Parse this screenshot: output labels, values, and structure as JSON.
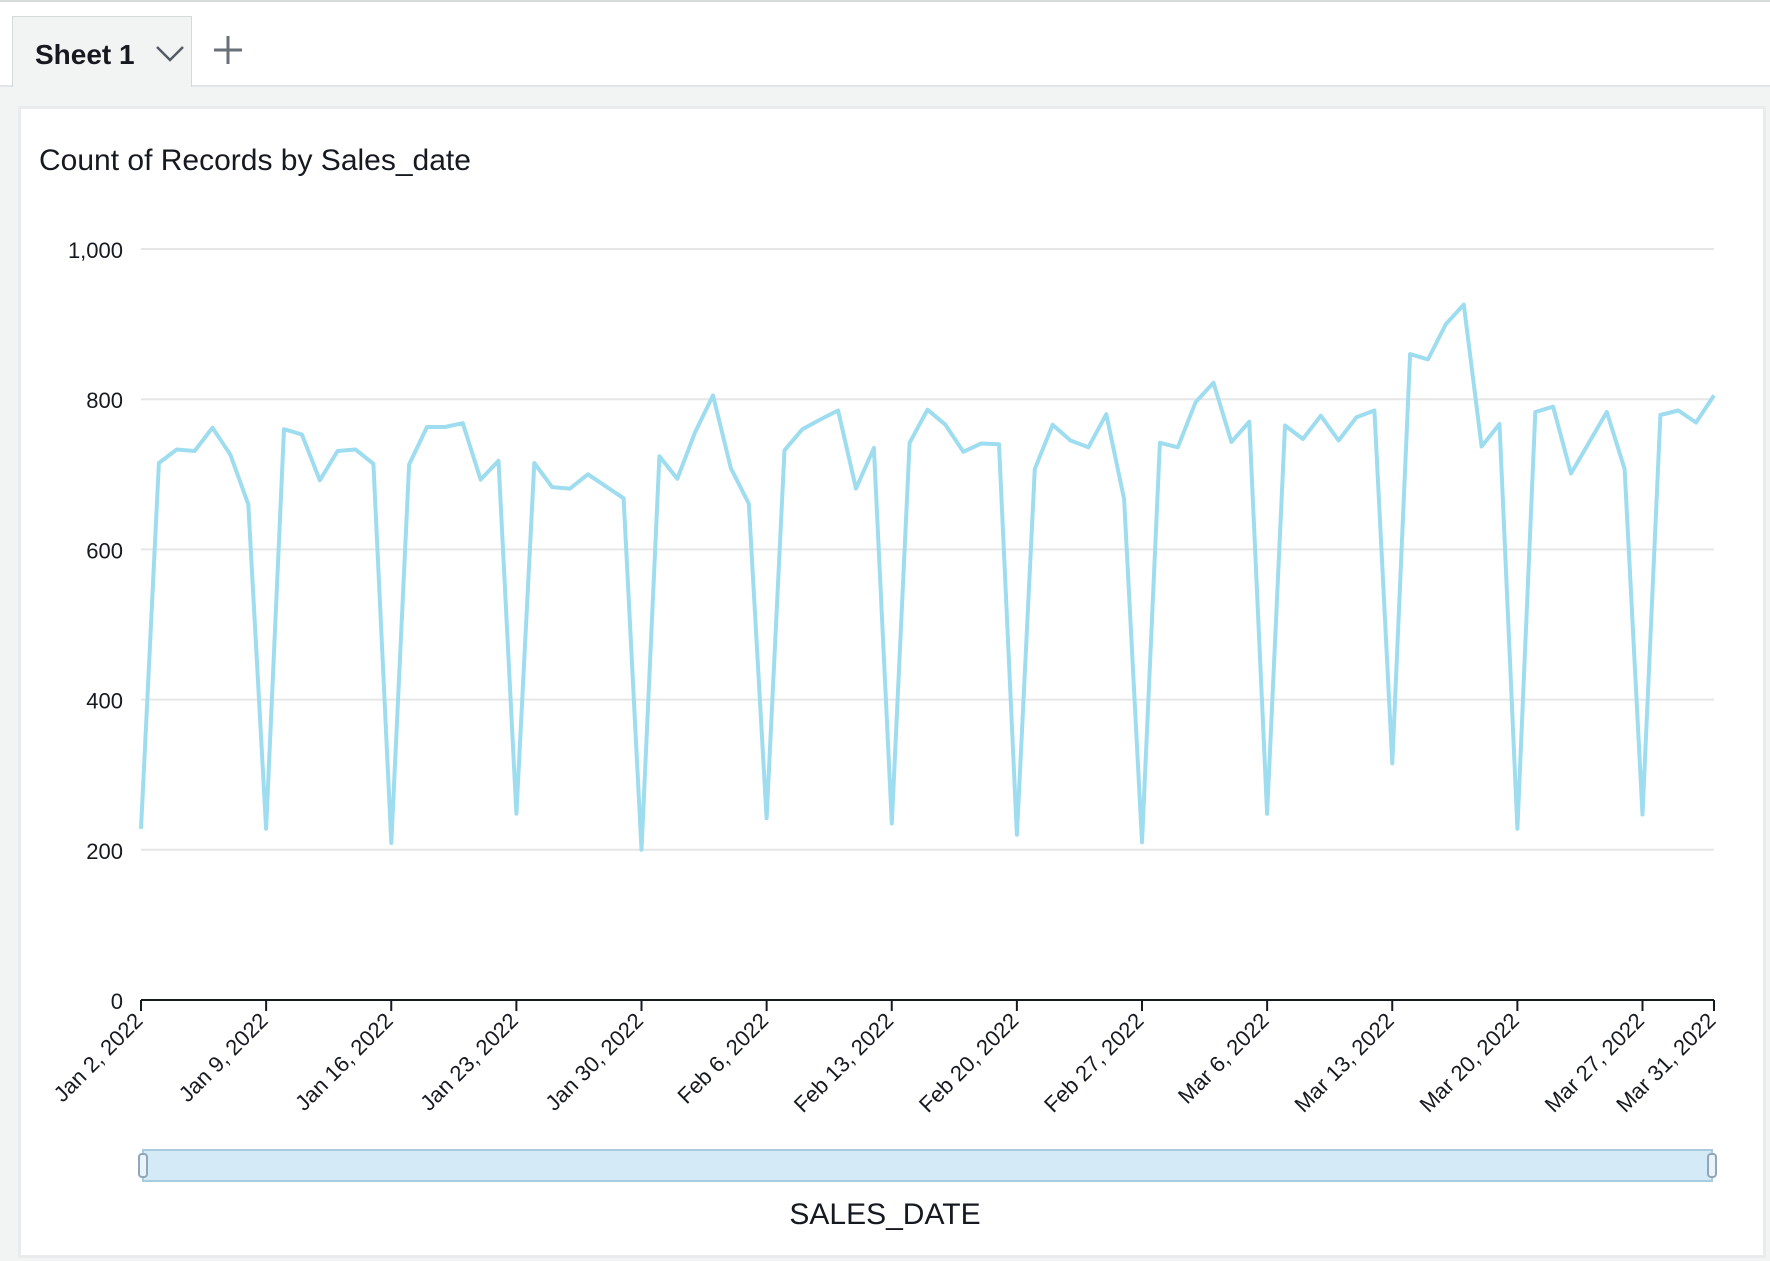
{
  "tabs": {
    "active_label": "Sheet 1",
    "caret_icon": "chevron-down-icon",
    "add_icon": "plus-icon"
  },
  "colors": {
    "line": "#9edcef",
    "scrollbar_fill": "#d4ebf7",
    "scrollbar_border": "#a9cbe0",
    "grid": "#e6e6e6",
    "axis": "#16191f"
  },
  "chart_data": {
    "type": "line",
    "title": "Count of Records by Sales_date",
    "xlabel": "SALES_DATE",
    "ylabel": "",
    "x_start": "Jan 2, 2022",
    "x_end": "Mar 31, 2022",
    "x_ticks": [
      "Jan 2, 2022",
      "Jan 9, 2022",
      "Jan 16, 2022",
      "Jan 23, 2022",
      "Jan 30, 2022",
      "Feb 6, 2022",
      "Feb 13, 2022",
      "Feb 20, 2022",
      "Feb 27, 2022",
      "Mar 6, 2022",
      "Mar 13, 2022",
      "Mar 20, 2022",
      "Mar 27, 2022",
      "Mar 31, 2022"
    ],
    "y_ticks": [
      "0",
      "200",
      "400",
      "600",
      "800",
      "1,000"
    ],
    "ylim": [
      0,
      1000
    ],
    "grid": true,
    "series": [
      {
        "values": [
          228,
          715,
          733,
          731,
          762,
          726,
          660,
          228,
          760,
          753,
          692,
          731,
          733,
          714,
          209,
          713,
          763,
          763,
          768,
          693,
          718,
          248,
          715,
          683,
          681,
          700,
          684,
          668,
          200,
          724,
          694,
          756,
          805,
          708,
          661,
          242,
          732,
          760,
          773,
          785,
          681,
          735,
          235,
          742,
          786,
          766,
          730,
          741,
          740,
          220,
          707,
          766,
          745,
          736,
          780,
          667,
          210,
          742,
          736,
          796,
          822,
          743,
          770,
          248,
          765,
          747,
          778,
          745,
          776,
          785,
          315,
          860,
          853,
          900,
          926,
          737,
          767,
          228,
          783,
          790,
          701,
          742,
          783,
          707,
          247,
          779,
          785,
          769,
          805
        ]
      }
    ]
  }
}
